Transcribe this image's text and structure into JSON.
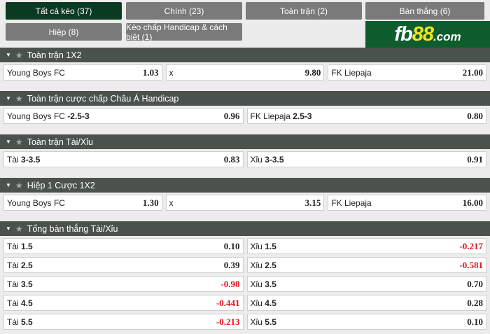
{
  "tabs": [
    {
      "label": "Tất cả kèo (37)",
      "active": true
    },
    {
      "label": "Chính (23)"
    },
    {
      "label": "Toàn trận (2)"
    },
    {
      "label": "Bàn thắng (6)"
    },
    {
      "label": "Hiệp (8)"
    },
    {
      "label": "Kèo chấp Handicap & cách biệt (1)"
    }
  ],
  "logo": {
    "a": "fb",
    "b": "88",
    "c": ".com"
  },
  "colors": {
    "active_tab": "#0b3a22",
    "tab": "#7a7a7a",
    "header": "#4b514b",
    "negative": "#e0141e",
    "logo_bg": "#0f5c2e"
  },
  "sections": [
    {
      "title": "Toàn trận 1X2",
      "rows": [
        [
          {
            "label": "Young Boys FC",
            "line": "",
            "odds": "1.03"
          },
          {
            "label": "x",
            "line": "",
            "odds": "9.80"
          },
          {
            "label": "FK Liepaja",
            "line": "",
            "odds": "21.00"
          }
        ]
      ]
    },
    {
      "title": "Toàn trận cược chấp Châu Á Handicap",
      "rows": [
        [
          {
            "label": "Young Boys FC",
            "line": "-2.5-3",
            "odds": "0.96"
          },
          {
            "label": "FK Liepaja",
            "line": "2.5-3",
            "odds": "0.80"
          }
        ]
      ]
    },
    {
      "title": "Toàn trận Tài/Xỉu",
      "rows": [
        [
          {
            "label": "Tài",
            "line": "3-3.5",
            "odds": "0.83"
          },
          {
            "label": "Xỉu",
            "line": "3-3.5",
            "odds": "0.91"
          }
        ]
      ]
    },
    {
      "title": "Hiệp 1 Cược 1X2",
      "rows": [
        [
          {
            "label": "Young Boys FC",
            "line": "",
            "odds": "1.30"
          },
          {
            "label": "x",
            "line": "",
            "odds": "3.15"
          },
          {
            "label": "FK Liepaja",
            "line": "",
            "odds": "16.00"
          }
        ]
      ]
    },
    {
      "title": "Tổng bàn thắng Tài/Xỉu",
      "rows": [
        [
          {
            "label": "Tài",
            "line": "1.5",
            "odds": "0.10"
          },
          {
            "label": "Xỉu",
            "line": "1.5",
            "odds": "-0.217"
          }
        ],
        [
          {
            "label": "Tài",
            "line": "2.5",
            "odds": "0.39"
          },
          {
            "label": "Xỉu",
            "line": "2.5",
            "odds": "-0.581"
          }
        ],
        [
          {
            "label": "Tài",
            "line": "3.5",
            "odds": "-0.98"
          },
          {
            "label": "Xỉu",
            "line": "3.5",
            "odds": "0.70"
          }
        ],
        [
          {
            "label": "Tài",
            "line": "4.5",
            "odds": "-0.441"
          },
          {
            "label": "Xỉu",
            "line": "4.5",
            "odds": "0.28"
          }
        ],
        [
          {
            "label": "Tài",
            "line": "5.5",
            "odds": "-0.213"
          },
          {
            "label": "Xỉu",
            "line": "5.5",
            "odds": "0.10"
          }
        ]
      ]
    }
  ]
}
